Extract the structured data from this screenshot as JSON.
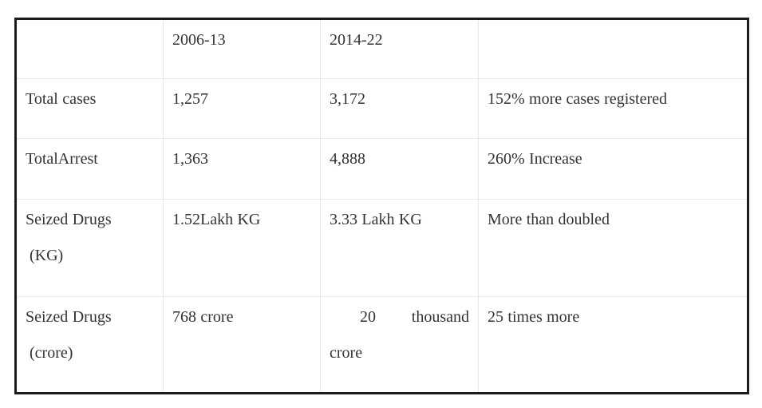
{
  "page": {
    "background_color": "#ffffff"
  },
  "table": {
    "outer_border_color": "#1c1c1c",
    "inner_border_color": "#e7e7e7",
    "text_color": "#333333",
    "header": {
      "period1": "2006-13",
      "period2": "2014-22"
    },
    "rows": [
      {
        "label_lines": [
          "Total cases"
        ],
        "v2006": "1,257",
        "v2014": "3,172",
        "note": "152% more cases registered"
      },
      {
        "label_lines": [
          "TotalArrest"
        ],
        "v2006": "1,363",
        "v2014": "4,888",
        "note": "260% Increase"
      },
      {
        "label_lines": [
          "Seized Drugs",
          "(KG)"
        ],
        "v2006": "1.52Lakh KG",
        "v2014": "3.33 Lakh KG",
        "note": "More than doubled"
      },
      {
        "label_lines": [
          "Seized Drugs",
          "(crore)"
        ],
        "v2006": "768 crore",
        "v2014": "20 thousand crore",
        "note": "25 times more"
      }
    ]
  },
  "chart_data": {
    "type": "table",
    "columns": [
      "",
      "2006-13",
      "2014-22",
      ""
    ],
    "rows": [
      [
        "Total cases",
        "1,257",
        "3,172",
        "152% more cases registered"
      ],
      [
        "TotalArrest",
        "1,363",
        "4,888",
        "260% Increase"
      ],
      [
        "Seized Drugs (KG)",
        "1.52Lakh KG",
        "3.33 Lakh KG",
        "More than doubled"
      ],
      [
        "Seized Drugs (crore)",
        "768 crore",
        "20 thousand crore",
        "25 times more"
      ]
    ]
  }
}
